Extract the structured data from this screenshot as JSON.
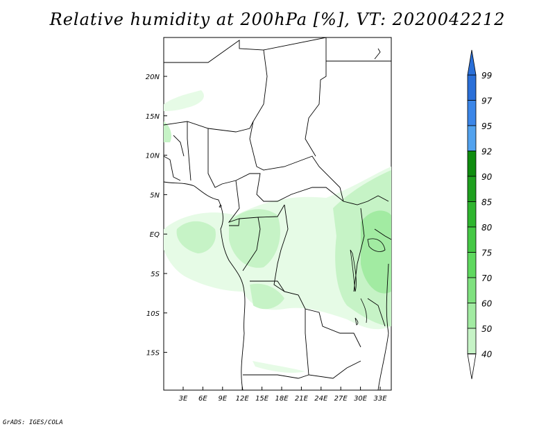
{
  "title": "Relative humidity at 200hPa [%], VT: 2020042212",
  "credit": "GrADS: IGES/COLA",
  "map": {
    "lat_ticks": [
      "20N",
      "15N",
      "10N",
      "5N",
      "EQ",
      "5S",
      "10S",
      "15S"
    ],
    "lon_ticks": [
      "3E",
      "6E",
      "9E",
      "12E",
      "15E",
      "18E",
      "21E",
      "24E",
      "27E",
      "30E",
      "33E"
    ]
  },
  "colorbar": {
    "levels": [
      "99",
      "97",
      "95",
      "92",
      "90",
      "85",
      "80",
      "75",
      "70",
      "60",
      "50",
      "40"
    ],
    "colors": [
      "#2a6fd8",
      "#3b86e8",
      "#52a2ee",
      "#0f8c0f",
      "#1fa01f",
      "#2fb52f",
      "#45c845",
      "#5fd85f",
      "#7fe17f",
      "#a2eba2",
      "#c6f3c6",
      "#e6fbe6"
    ]
  }
}
